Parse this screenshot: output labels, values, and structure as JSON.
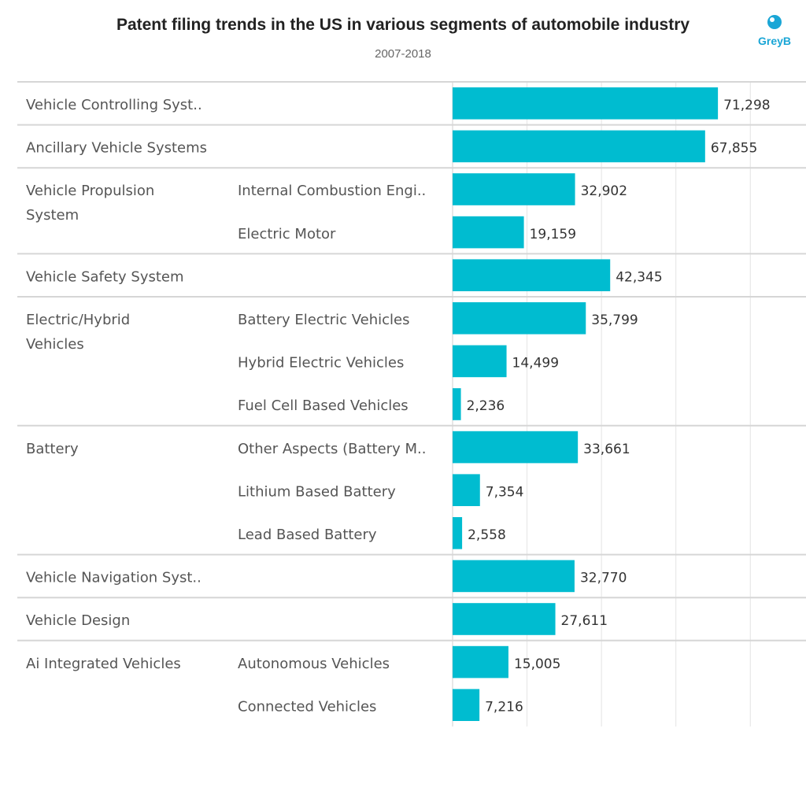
{
  "header": {
    "title": "Patent filing trends in the US in various segments of automobile industry",
    "subtitle": "2007-2018"
  },
  "logo": {
    "text": "GreyB",
    "color": "#1aa6d6"
  },
  "chart_data": {
    "type": "bar",
    "orientation": "horizontal",
    "bar_color": "#00bcd0",
    "xlim": [
      0,
      92000
    ],
    "gridlines": [
      20000,
      40000,
      60000,
      80000
    ],
    "groups": [
      {
        "label": "Vehicle Controlling Syst..",
        "items": [
          {
            "label": "",
            "value": 71298,
            "display": "71,298"
          }
        ]
      },
      {
        "label": "Ancillary Vehicle Systems",
        "items": [
          {
            "label": "",
            "value": 67855,
            "display": "67,855"
          }
        ]
      },
      {
        "label": "Vehicle Propulsion System",
        "items": [
          {
            "label": "Internal Combustion Engi..",
            "value": 32902,
            "display": "32,902"
          },
          {
            "label": "Electric Motor",
            "value": 19159,
            "display": "19,159"
          }
        ]
      },
      {
        "label": "Vehicle Safety System",
        "items": [
          {
            "label": "",
            "value": 42345,
            "display": "42,345"
          }
        ]
      },
      {
        "label": "Electric/Hybrid Vehicles",
        "items": [
          {
            "label": "Battery Electric Vehicles",
            "value": 35799,
            "display": "35,799"
          },
          {
            "label": "Hybrid Electric Vehicles",
            "value": 14499,
            "display": "14,499"
          },
          {
            "label": "Fuel Cell Based Vehicles",
            "value": 2236,
            "display": "2,236"
          }
        ]
      },
      {
        "label": "Battery",
        "items": [
          {
            "label": "Other Aspects (Battery M..",
            "value": 33661,
            "display": "33,661"
          },
          {
            "label": "Lithium Based Battery",
            "value": 7354,
            "display": "7,354"
          },
          {
            "label": "Lead Based Battery",
            "value": 2558,
            "display": "2,558"
          }
        ]
      },
      {
        "label": "Vehicle Navigation Syst..",
        "items": [
          {
            "label": "",
            "value": 32770,
            "display": "32,770"
          }
        ]
      },
      {
        "label": "Vehicle Design",
        "items": [
          {
            "label": "",
            "value": 27611,
            "display": "27,611"
          }
        ]
      },
      {
        "label": "Ai Integrated Vehicles",
        "items": [
          {
            "label": "Autonomous Vehicles",
            "value": 15005,
            "display": "15,005"
          },
          {
            "label": "Connected Vehicles",
            "value": 7216,
            "display": "7,216"
          }
        ]
      }
    ]
  }
}
